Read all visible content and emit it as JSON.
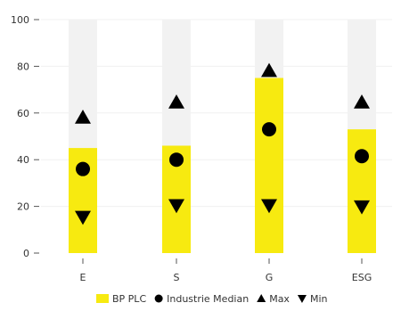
{
  "chart_data": {
    "type": "bar",
    "categories": [
      "E",
      "S",
      "G",
      "ESG"
    ],
    "ylim": [
      0,
      100
    ],
    "yticks": [
      0,
      20,
      40,
      60,
      80,
      100
    ],
    "grid": true,
    "legend_position": "bottom",
    "series": [
      {
        "name": "BP PLC",
        "mark": "bar",
        "color": "#f7ea10",
        "values": [
          45,
          46,
          75,
          53
        ]
      },
      {
        "name": "Industrie Median",
        "mark": "circle",
        "color": "#000000",
        "values": [
          36,
          40,
          53,
          41.5
        ]
      },
      {
        "name": "Max",
        "mark": "triangle-up",
        "color": "#000000",
        "values": [
          58,
          64.5,
          78,
          64.5
        ]
      },
      {
        "name": "Min",
        "mark": "triangle-down",
        "color": "#000000",
        "values": [
          15.5,
          20.5,
          20.5,
          20
        ]
      }
    ],
    "range_band": {
      "color": "#f2f2f2",
      "max": 100
    }
  }
}
